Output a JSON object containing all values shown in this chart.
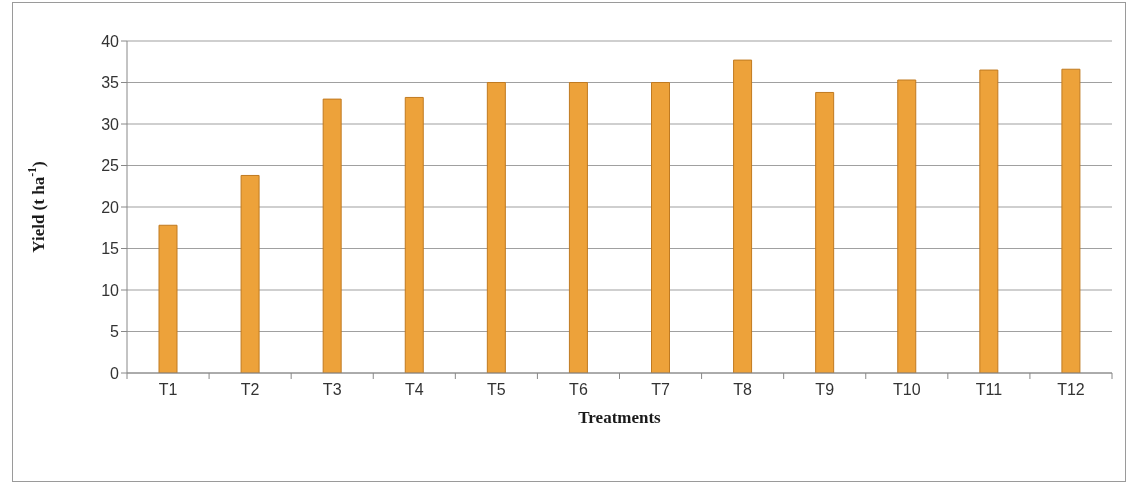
{
  "chart_data": {
    "type": "bar",
    "xlabel": "Treatments",
    "ylabel": "Yield (t ha$^{-1}$)",
    "categories": [
      "T1",
      "T2",
      "T3",
      "T4",
      "T5",
      "T6",
      "T7",
      "T8",
      "T9",
      "T10",
      "T11",
      "T12"
    ],
    "values": [
      17.8,
      23.8,
      33,
      33.2,
      35,
      35,
      35,
      37.7,
      33.8,
      35.3,
      36.5,
      36.6
    ],
    "color": "#eda23a",
    "ylim": [
      0,
      40
    ],
    "yticks": [
      0,
      5,
      10,
      15,
      20,
      25,
      30,
      35,
      40
    ],
    "grid": "y",
    "legend": false
  }
}
